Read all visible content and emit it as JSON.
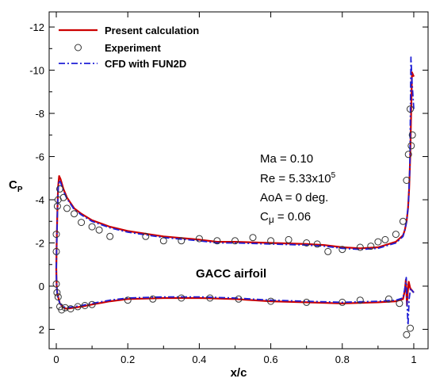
{
  "chart_data": {
    "type": "line",
    "xlabel": "x/c",
    "ylabel": "C",
    "ylabel_sub": "P",
    "xlim": [
      -0.02,
      1.04
    ],
    "ylim": [
      2.9,
      -12.7
    ],
    "y_inverted": true,
    "xticks": [
      0,
      0.2,
      0.4,
      0.6,
      0.8,
      1
    ],
    "xtick_labels": [
      "0",
      "0.2",
      "0.4",
      "0.6",
      "0.8",
      "1"
    ],
    "yticks": [
      -12,
      -10,
      -8,
      -6,
      -4,
      -2,
      0,
      2
    ],
    "ytick_labels": [
      "-12",
      "-10",
      "-8",
      "-6",
      "-4",
      "-2",
      "0",
      "2"
    ],
    "grid": false,
    "legend_position": "top-left",
    "colors": {
      "present": "#cc0000",
      "cfd": "#1f1fd6",
      "experiment": "#333333"
    },
    "legend": [
      {
        "name": "Present calculation",
        "style": "solid-line",
        "color": "#cc0000"
      },
      {
        "name": "Experiment",
        "style": "open-circle",
        "color": "#333333"
      },
      {
        "name": "CFD with FUN2D",
        "style": "dash-dot-line",
        "color": "#1f1fd6"
      }
    ],
    "annotations": {
      "ma": "Ma = 0.10",
      "re_base": "Re = 5.33x10",
      "re_exp": "5",
      "aoa": "AoA = 0 deg.",
      "cmu_c": "C",
      "cmu_mu": "μ",
      "cmu_val": " = 0.06",
      "airfoil": "GACC airfoil"
    },
    "series": [
      {
        "name": "Present calculation",
        "style": "line",
        "x": [
          1.0,
          0.995,
          0.99,
          0.987,
          0.984,
          0.98,
          0.975,
          0.97,
          0.95,
          0.9,
          0.85,
          0.8,
          0.75,
          0.7,
          0.6,
          0.5,
          0.45,
          0.4,
          0.3,
          0.2,
          0.15,
          0.1,
          0.07,
          0.05,
          0.03,
          0.02,
          0.012,
          0.008,
          0.005,
          0.003,
          0.001,
          0.0,
          0.001,
          0.003,
          0.006,
          0.01,
          0.02,
          0.03,
          0.05,
          0.07,
          0.1,
          0.15,
          0.2,
          0.3,
          0.4,
          0.5,
          0.6,
          0.7,
          0.8,
          0.9,
          0.95,
          0.97,
          0.975,
          0.978,
          0.981,
          0.983,
          0.986,
          0.99,
          0.995,
          1.0
        ],
        "y": [
          -9.7,
          -9.9,
          -6.0,
          -4.5,
          -3.6,
          -3.0,
          -2.6,
          -2.35,
          -2.05,
          -1.8,
          -1.75,
          -1.8,
          -1.9,
          -1.95,
          -2.0,
          -2.05,
          -2.05,
          -2.15,
          -2.3,
          -2.55,
          -2.75,
          -3.05,
          -3.35,
          -3.6,
          -4.1,
          -4.5,
          -4.95,
          -5.1,
          -4.6,
          -3.5,
          -2.0,
          -0.8,
          0.0,
          0.35,
          0.55,
          0.8,
          1.0,
          1.05,
          1.0,
          0.95,
          0.85,
          0.7,
          0.6,
          0.55,
          0.55,
          0.6,
          0.7,
          0.75,
          0.8,
          0.75,
          0.7,
          0.6,
          0.2,
          -0.3,
          0.9,
          0.3,
          -0.2,
          0.1,
          0.2,
          0.3
        ]
      },
      {
        "name": "CFD with FUN2D",
        "style": "line",
        "x": [
          1.0,
          0.995,
          0.992,
          0.989,
          0.985,
          0.98,
          0.975,
          0.97,
          0.95,
          0.9,
          0.85,
          0.8,
          0.75,
          0.7,
          0.6,
          0.5,
          0.45,
          0.4,
          0.3,
          0.2,
          0.15,
          0.1,
          0.07,
          0.05,
          0.03,
          0.02,
          0.012,
          0.008,
          0.005,
          0.003,
          0.001,
          0.0,
          0.001,
          0.003,
          0.006,
          0.01,
          0.02,
          0.03,
          0.05,
          0.07,
          0.1,
          0.15,
          0.2,
          0.3,
          0.4,
          0.5,
          0.6,
          0.7,
          0.8,
          0.9,
          0.95,
          0.97,
          0.975,
          0.979,
          0.982,
          0.984,
          0.987,
          0.991,
          0.995,
          1.0
        ],
        "y": [
          -8.2,
          -9.5,
          -10.6,
          -5.5,
          -3.8,
          -3.0,
          -2.6,
          -2.3,
          -2.0,
          -1.75,
          -1.7,
          -1.75,
          -1.85,
          -1.9,
          -1.95,
          -2.0,
          -2.0,
          -2.1,
          -2.25,
          -2.5,
          -2.7,
          -3.0,
          -3.3,
          -3.55,
          -4.05,
          -4.4,
          -4.8,
          -4.9,
          -4.5,
          -3.4,
          -1.9,
          -0.7,
          0.05,
          0.4,
          0.6,
          0.8,
          0.95,
          1.0,
          0.95,
          0.9,
          0.8,
          0.65,
          0.55,
          0.5,
          0.5,
          0.55,
          0.65,
          0.7,
          0.75,
          0.7,
          0.65,
          0.55,
          0.1,
          -0.4,
          1.1,
          1.8,
          0.6,
          0.1,
          0.2,
          0.3
        ]
      },
      {
        "name": "Experiment",
        "style": "markers",
        "x": [
          0.0,
          0.0,
          0.003,
          0.005,
          0.01,
          0.02,
          0.03,
          0.05,
          0.07,
          0.1,
          0.12,
          0.15,
          0.25,
          0.3,
          0.35,
          0.4,
          0.45,
          0.5,
          0.55,
          0.6,
          0.65,
          0.7,
          0.73,
          0.76,
          0.8,
          0.85,
          0.88,
          0.9,
          0.92,
          0.95,
          0.97,
          0.98,
          0.985,
          0.99,
          0.993,
          0.996,
          0.0,
          0.002,
          0.005,
          0.01,
          0.015,
          0.025,
          0.04,
          0.06,
          0.08,
          0.1,
          0.2,
          0.27,
          0.35,
          0.43,
          0.51,
          0.6,
          0.7,
          0.8,
          0.85,
          0.93,
          0.96,
          0.98,
          0.99
        ],
        "y": [
          -1.6,
          -2.4,
          -3.7,
          -4.0,
          -4.5,
          -4.1,
          -3.6,
          -3.35,
          -2.95,
          -2.75,
          -2.6,
          -2.3,
          -2.3,
          -2.1,
          -2.1,
          -2.2,
          -2.1,
          -2.1,
          -2.25,
          -2.1,
          -2.15,
          -2.0,
          -1.95,
          -1.6,
          -1.7,
          -1.8,
          -1.85,
          -2.05,
          -2.15,
          -2.4,
          -3.0,
          -4.9,
          -6.1,
          -8.2,
          -6.5,
          -7.0,
          -0.1,
          0.3,
          0.5,
          0.95,
          1.1,
          1.0,
          1.05,
          0.95,
          0.9,
          0.85,
          0.65,
          0.6,
          0.55,
          0.55,
          0.6,
          0.7,
          0.75,
          0.75,
          0.65,
          0.6,
          0.8,
          2.25,
          1.95
        ]
      }
    ]
  }
}
